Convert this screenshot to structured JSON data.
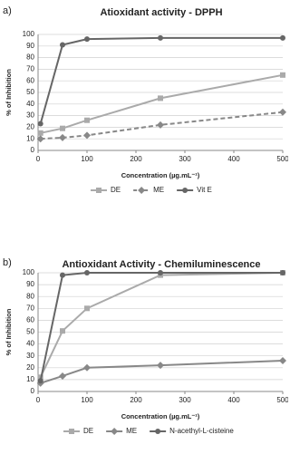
{
  "chart_data": [
    {
      "type": "line",
      "panel": "a)",
      "title": "Atioxidant activity - DPPH",
      "y_label": "% of Inhibition",
      "x_label": "Concentration (µg.mL⁻¹)",
      "x": [
        5,
        50,
        100,
        250,
        500
      ],
      "xlim": [
        0,
        500
      ],
      "xticks": [
        0,
        100,
        200,
        300,
        400,
        500
      ],
      "ylim": [
        0,
        100
      ],
      "yticks": [
        0,
        10,
        20,
        30,
        40,
        50,
        60,
        70,
        80,
        90,
        100
      ],
      "grid": true,
      "series": [
        {
          "name": "DE",
          "color": "#aaaaaa",
          "marker": "square",
          "dashed": false,
          "values": [
            15,
            19,
            26,
            45,
            65
          ]
        },
        {
          "name": "ME",
          "color": "#888888",
          "marker": "diamond",
          "dashed": true,
          "values": [
            10,
            11,
            13,
            22,
            33
          ]
        },
        {
          "name": "Vit E",
          "color": "#666666",
          "marker": "circle",
          "dashed": false,
          "values": [
            23,
            91,
            96,
            97,
            97
          ]
        }
      ]
    },
    {
      "type": "line",
      "panel": "b)",
      "title": "Antioxidant Activity - Chemiluminescence",
      "y_label": "% of Inhibition",
      "x_label": "Concentration (µg.mL⁻¹)",
      "x": [
        5,
        50,
        100,
        250,
        500
      ],
      "xlim": [
        0,
        500
      ],
      "xticks": [
        0,
        100,
        200,
        300,
        400,
        500
      ],
      "ylim": [
        0,
        100
      ],
      "yticks": [
        0,
        10,
        20,
        30,
        40,
        50,
        60,
        70,
        80,
        90,
        100
      ],
      "grid": true,
      "series": [
        {
          "name": "DE",
          "color": "#aaaaaa",
          "marker": "square",
          "dashed": false,
          "values": [
            12,
            51,
            70,
            98,
            100
          ]
        },
        {
          "name": "ME",
          "color": "#888888",
          "marker": "diamond",
          "dashed": false,
          "values": [
            7,
            13,
            20,
            22,
            26
          ]
        },
        {
          "name": "N-acethyl-L-cisteine",
          "color": "#666666",
          "marker": "circle",
          "dashed": false,
          "values": [
            9,
            98,
            100,
            100,
            100
          ]
        }
      ]
    }
  ]
}
